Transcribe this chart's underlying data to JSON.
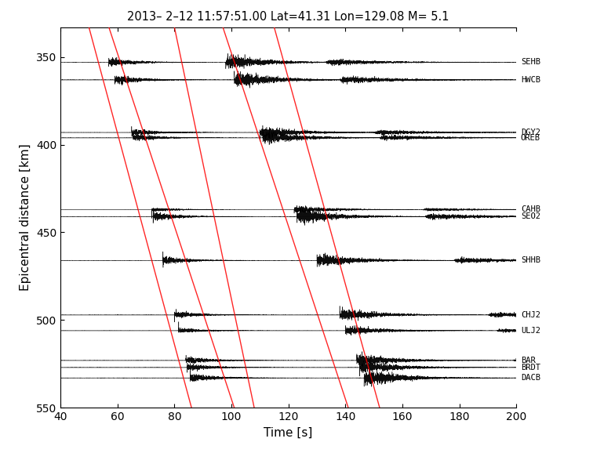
{
  "title": "2013– 2–12 11:57:51.00 Lat=41.31 Lon=129.08 M= 5.1",
  "xlabel": "Time [s]",
  "ylabel": "Epicentral distance [km]",
  "xlim": [
    40,
    200
  ],
  "ylim": [
    550,
    333
  ],
  "xticks": [
    40,
    60,
    80,
    100,
    120,
    140,
    160,
    180,
    200
  ],
  "yticks": [
    350,
    400,
    450,
    500,
    550
  ],
  "stations": [
    {
      "name": "SEHB",
      "dist": 353,
      "t_p": 57.0,
      "t_s": 98.0,
      "t_surf": 133.0
    },
    {
      "name": "HWCB",
      "dist": 363,
      "t_p": 59.0,
      "t_s": 101.0,
      "t_surf": 138.0
    },
    {
      "name": "DGY2",
      "dist": 393,
      "t_p": 65.0,
      "t_s": 110.0,
      "t_surf": 150.0
    },
    {
      "name": "OREB",
      "dist": 396,
      "t_p": 65.5,
      "t_s": 111.0,
      "t_surf": 152.0
    },
    {
      "name": "CAHB",
      "dist": 437,
      "t_p": 72.0,
      "t_s": 122.0,
      "t_surf": 167.0
    },
    {
      "name": "SEO2",
      "dist": 441,
      "t_p": 72.5,
      "t_s": 123.0,
      "t_surf": 168.0
    },
    {
      "name": "SHHB",
      "dist": 466,
      "t_p": 76.0,
      "t_s": 130.0,
      "t_surf": 178.0
    },
    {
      "name": "CHJ2",
      "dist": 497,
      "t_p": 80.0,
      "t_s": 138.0,
      "t_surf": 190.0
    },
    {
      "name": "ULJ2",
      "dist": 506,
      "t_p": 81.5,
      "t_s": 140.0,
      "t_surf": 193.0
    },
    {
      "name": "BAR",
      "dist": 523,
      "t_p": 84.0,
      "t_s": 144.0,
      "t_surf": 199.0
    },
    {
      "name": "BRDT",
      "dist": 527,
      "t_p": 84.5,
      "t_s": 145.0,
      "t_surf": 200.0
    },
    {
      "name": "DACB",
      "dist": 533,
      "t_p": 85.5,
      "t_s": 146.5,
      "t_surf": 201.0
    }
  ],
  "red_lines": [
    {
      "x1": 50.0,
      "y1": 333,
      "x2": 86.0,
      "y2": 550
    },
    {
      "x1": 57.0,
      "y1": 333,
      "x2": 101.0,
      "y2": 550
    },
    {
      "x1": 80.0,
      "y1": 333,
      "x2": 108.0,
      "y2": 550
    },
    {
      "x1": 97.0,
      "y1": 333,
      "x2": 141.0,
      "y2": 550
    },
    {
      "x1": 115.0,
      "y1": 333,
      "x2": 152.0,
      "y2": 550
    }
  ],
  "bg_color": "white",
  "line_color": "black",
  "red_color": "red",
  "waveform_scale": 5.0,
  "noise_level": 0.12
}
